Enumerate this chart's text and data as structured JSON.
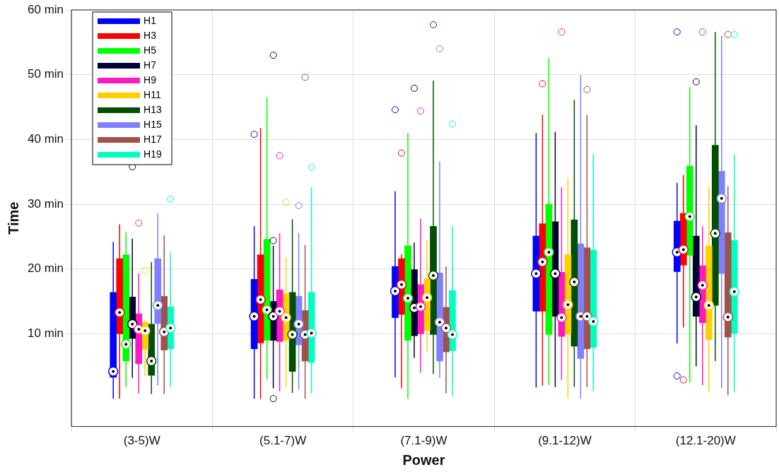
{
  "chart_data": {
    "type": "box",
    "xlabel": "Power",
    "ylabel": "Time",
    "categories": [
      "(3-5)W",
      "(5.1-7)W",
      "(7.1-9)W",
      "(9.1-12)W",
      "(12.1-20)W"
    ],
    "ylim": [
      -4.3,
      60
    ],
    "yticks": [
      {
        "value": 10,
        "label": "10 min"
      },
      {
        "value": 20,
        "label": "20 min"
      },
      {
        "value": 30,
        "label": "30 min"
      },
      {
        "value": 40,
        "label": "40 min"
      },
      {
        "value": 50,
        "label": "50 min"
      },
      {
        "value": 60,
        "label": "60 min"
      }
    ],
    "grid": true,
    "legend": "top left",
    "series": [
      {
        "name": "H1",
        "color": "#0000ff",
        "boxes": [
          {
            "low": 0,
            "q1": 3.3,
            "median": 4.2,
            "q3": 16.4,
            "high": 24.2
          },
          {
            "low": 0,
            "q1": 7.7,
            "median": 12.7,
            "q3": 18.4,
            "high": 26.6,
            "outliers": [
              40.8
            ]
          },
          {
            "low": 3.3,
            "q1": 12.5,
            "median": 16.6,
            "q3": 20.4,
            "high": 32,
            "outliers": [
              44.6
            ]
          },
          {
            "low": 1.7,
            "q1": 13.5,
            "median": 19.3,
            "q3": 25.1,
            "high": 41
          },
          {
            "low": 8.5,
            "q1": 19.6,
            "median": 22.6,
            "q3": 27.4,
            "high": 33.3,
            "outliers": [
              56.6,
              3.5
            ]
          }
        ]
      },
      {
        "name": "H3",
        "color": "#ff0000",
        "boxes": [
          {
            "low": 0,
            "q1": 10,
            "median": 13.3,
            "q3": 21.6,
            "high": 26.9
          },
          {
            "low": 0,
            "q1": 8.6,
            "median": 15.3,
            "q3": 22.2,
            "high": 41.8
          },
          {
            "low": 1.6,
            "q1": 13,
            "median": 17.6,
            "q3": 21.6,
            "high": 22.3,
            "outliers": [
              37.9
            ]
          },
          {
            "low": 2,
            "q1": 13.5,
            "median": 21.1,
            "q3": 27,
            "high": 43.8,
            "outliers": [
              48.6
            ]
          },
          {
            "low": 11,
            "q1": 20.6,
            "median": 23,
            "q3": 28.6,
            "high": 34.5,
            "outliers": [
              2.9
            ]
          }
        ]
      },
      {
        "name": "H5",
        "color": "#00ff00",
        "boxes": [
          {
            "low": 1.8,
            "q1": 5.8,
            "median": 8.4,
            "q3": 22.2,
            "high": 25.7
          },
          {
            "low": 3,
            "q1": 9,
            "median": 13.7,
            "q3": 24.6,
            "high": 46.5
          },
          {
            "low": 0,
            "q1": 9,
            "median": 15.5,
            "q3": 23.6,
            "high": 41
          },
          {
            "low": 2.1,
            "q1": 9.9,
            "median": 22.6,
            "q3": 30,
            "high": 52.6
          },
          {
            "low": 2.5,
            "q1": 22.1,
            "median": 28.1,
            "q3": 35.9,
            "high": 48.1
          }
        ]
      },
      {
        "name": "H7",
        "color": "#000033",
        "boxes": [
          {
            "low": 3.2,
            "q1": 9.3,
            "median": 11.5,
            "q3": 15.7,
            "high": 24.7,
            "outliers": [
              35.8
            ]
          },
          {
            "low": 1.6,
            "q1": 9,
            "median": 12.7,
            "q3": 15,
            "high": 23.6,
            "outliers": [
              53,
              24.4,
              0
            ]
          },
          {
            "low": 6.3,
            "q1": 9.7,
            "median": 14,
            "q3": 19.9,
            "high": 24.1,
            "outliers": [
              47.9
            ]
          },
          {
            "low": 1.8,
            "q1": 12.7,
            "median": 19.3,
            "q3": 27.3,
            "high": 41.2
          },
          {
            "low": 5,
            "q1": 12.7,
            "median": 15.7,
            "q3": 25.1,
            "high": 42.2,
            "outliers": [
              48.9
            ]
          }
        ]
      },
      {
        "name": "H9",
        "color": "#ff19c0",
        "boxes": [
          {
            "low": 0.8,
            "q1": 5.4,
            "median": 10.7,
            "q3": 13.1,
            "high": 19.3,
            "outliers": [
              27.1
            ]
          },
          {
            "low": 1.1,
            "q1": 8.8,
            "median": 13.5,
            "q3": 16.8,
            "high": 25.5,
            "outliers": [
              37.5
            ]
          },
          {
            "low": 4,
            "q1": 10,
            "median": 14.2,
            "q3": 17.6,
            "high": 27.8,
            "outliers": [
              44.4
            ]
          },
          {
            "low": 2.9,
            "q1": 9.6,
            "median": 12.5,
            "q3": 19.5,
            "high": 32.6,
            "outliers": [
              56.6
            ]
          },
          {
            "low": 2.1,
            "q1": 11.7,
            "median": 17.5,
            "q3": 20.5,
            "high": 26.6,
            "outliers": [
              56.6
            ]
          }
        ]
      },
      {
        "name": "H11",
        "color": "#ffd000",
        "boxes": [
          {
            "low": 3.5,
            "q1": 7.6,
            "median": 10.5,
            "q3": 11.8,
            "high": 12.2,
            "outliers": [
              19.8
            ]
          },
          {
            "low": 1.8,
            "q1": 9,
            "median": 12.5,
            "q3": 16.2,
            "high": 21.8,
            "outliers": [
              30.3
            ]
          },
          {
            "low": 7.2,
            "q1": 10.5,
            "median": 15.6,
            "q3": 18.5,
            "high": 24.5
          },
          {
            "low": 0,
            "q1": 9.9,
            "median": 14.5,
            "q3": 22.2,
            "high": 34.1
          },
          {
            "low": 1.1,
            "q1": 9.1,
            "median": 14.4,
            "q3": 23.6,
            "high": 32.7
          }
        ]
      },
      {
        "name": "H13",
        "color": "#005000",
        "boxes": [
          {
            "low": 0.7,
            "q1": 3.6,
            "median": 5.8,
            "q3": 11.5,
            "high": 21.1
          },
          {
            "low": 0.9,
            "q1": 4.2,
            "median": 9.9,
            "q3": 16.4,
            "high": 27.7
          },
          {
            "low": 3.8,
            "q1": 9.9,
            "median": 19,
            "q3": 26.6,
            "high": 49.1,
            "outliers": [
              57.7
            ]
          },
          {
            "low": 1.8,
            "q1": 8.1,
            "median": 18,
            "q3": 27.6,
            "high": 46.1
          },
          {
            "low": 5.8,
            "q1": 14.4,
            "median": 25.5,
            "q3": 39.1,
            "high": 56.6
          }
        ]
      },
      {
        "name": "H15",
        "color": "#8080ff",
        "boxes": [
          {
            "low": 2,
            "q1": 11.6,
            "median": 14.4,
            "q3": 21.6,
            "high": 28.6
          },
          {
            "low": 1.4,
            "q1": 8.3,
            "median": 11.5,
            "q3": 15.8,
            "high": 25.6,
            "outliers": [
              29.8
            ]
          },
          {
            "low": 3.2,
            "q1": 5.8,
            "median": 11.8,
            "q3": 19.4,
            "high": 36.6,
            "outliers": [
              54
            ]
          },
          {
            "low": 0,
            "q1": 6.2,
            "median": 12.7,
            "q3": 23.9,
            "high": 49.9
          },
          {
            "low": 1.6,
            "q1": 19.3,
            "median": 30.9,
            "q3": 35.1,
            "high": 56
          }
        ]
      },
      {
        "name": "H17",
        "color": "#a0524a",
        "boxes": [
          {
            "low": 0.7,
            "q1": 7.5,
            "median": 10.3,
            "q3": 15.8,
            "high": 25.2
          },
          {
            "low": 0,
            "q1": 5.8,
            "median": 9.9,
            "q3": 13.6,
            "high": 23.7,
            "outliers": [
              49.6
            ]
          },
          {
            "low": 0.8,
            "q1": 7.2,
            "median": 10.9,
            "q3": 14.1,
            "high": 20.4
          },
          {
            "low": 1.8,
            "q1": 7.7,
            "median": 12.7,
            "q3": 23.3,
            "high": 43.8,
            "outliers": [
              47.7
            ]
          },
          {
            "low": 0.5,
            "q1": 9.5,
            "median": 12.6,
            "q3": 25.6,
            "high": 32.8,
            "outliers": [
              56.2
            ]
          }
        ]
      },
      {
        "name": "H19",
        "color": "#00ffc0",
        "boxes": [
          {
            "low": 1.8,
            "q1": 7.7,
            "median": 10.9,
            "q3": 14.2,
            "high": 22.5,
            "outliers": [
              30.8
            ]
          },
          {
            "low": 0.8,
            "q1": 5.6,
            "median": 10.1,
            "q3": 16.4,
            "high": 32.6,
            "outliers": [
              35.7
            ]
          },
          {
            "low": 0.4,
            "q1": 7.4,
            "median": 9.9,
            "q3": 16.7,
            "high": 26.6,
            "outliers": [
              42.4
            ]
          },
          {
            "low": 1.1,
            "q1": 7.9,
            "median": 11.9,
            "q3": 22.9,
            "high": 37.8
          },
          {
            "low": 1,
            "q1": 10.1,
            "median": 16.5,
            "q3": 24.4,
            "high": 37.7,
            "outliers": [
              56.2
            ]
          }
        ]
      }
    ]
  }
}
